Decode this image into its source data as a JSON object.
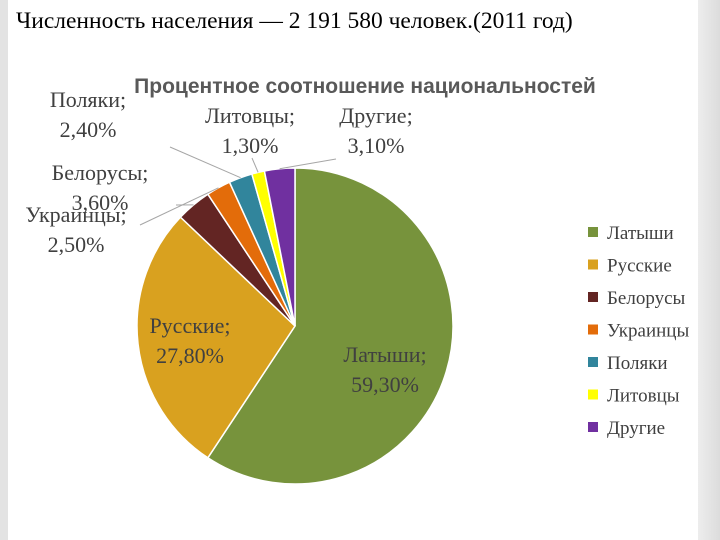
{
  "slide": {
    "title": "Численность населения — 2 191 580 человек.(2011 год)"
  },
  "chart_data": {
    "type": "pie",
    "title": "Процентное соотношение национальностей",
    "unit": "%",
    "legend_position": "right",
    "slices": [
      {
        "name": "Латыши",
        "value": 59.3,
        "label": "Латыши;|59,30%",
        "color": "#77933c"
      },
      {
        "name": "Русские",
        "value": 27.8,
        "label": "Русские;|27,80%",
        "color": "#d9a11f"
      },
      {
        "name": "Белорусы",
        "value": 3.6,
        "label": "Белорусы;|3,60%",
        "color": "#632523"
      },
      {
        "name": "Украинцы",
        "value": 2.5,
        "label": "Украинцы;|2,50%",
        "color": "#e36c0a"
      },
      {
        "name": "Поляки",
        "value": 2.4,
        "label": "Поляки;|2,40%",
        "color": "#31859c"
      },
      {
        "name": "Литовцы",
        "value": 1.3,
        "label": "Литовцы;|1,30%",
        "color": "#ffff00"
      },
      {
        "name": "Другие",
        "value": 3.1,
        "label": "Другие;|3,10%",
        "color": "#7030a0"
      }
    ]
  }
}
